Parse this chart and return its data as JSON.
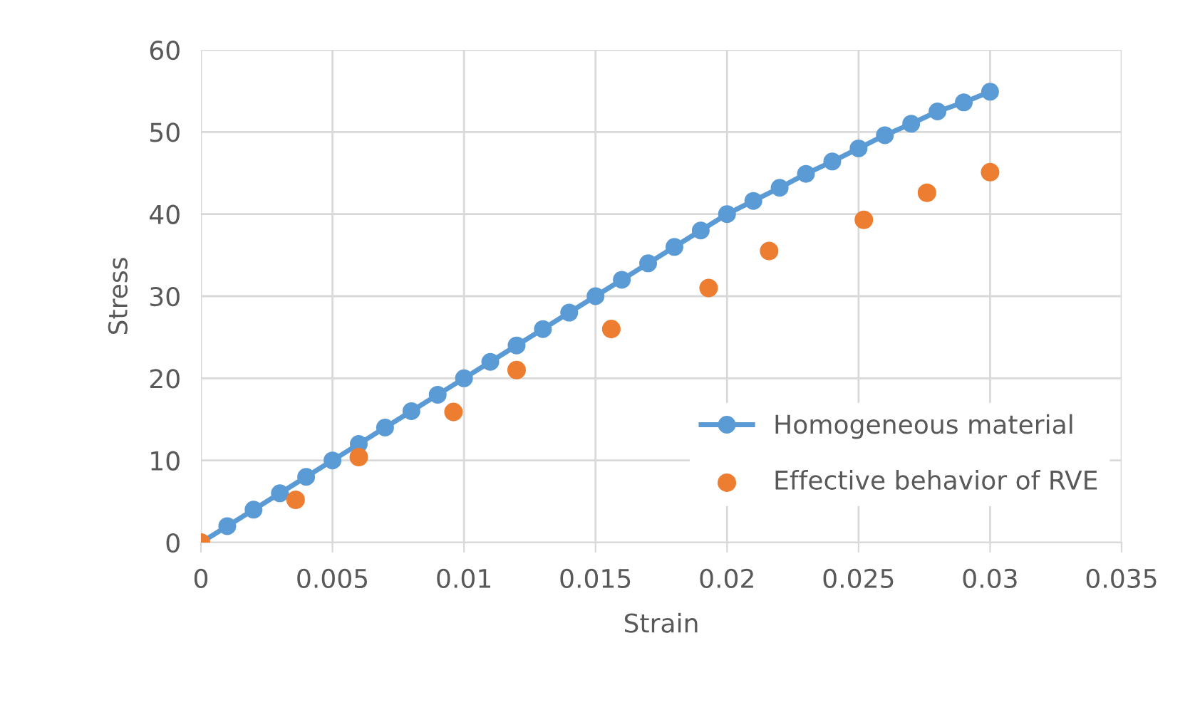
{
  "chart_data": {
    "type": "line",
    "xlabel": "Strain",
    "ylabel": "Stress",
    "xlim": [
      0,
      0.035
    ],
    "xticks": [
      0,
      0.005,
      0.01,
      0.015,
      0.02,
      0.025,
      0.03,
      0.035
    ],
    "ylim": [
      0,
      60
    ],
    "yticks": [
      0,
      10,
      20,
      30,
      40,
      50,
      60
    ],
    "grid": true,
    "legend": "bottom right",
    "marker": "circle",
    "series": [
      {
        "name": "Homogeneous material",
        "color": "#5b9bd5",
        "x": [
          0,
          0.001,
          0.002,
          0.003,
          0.004,
          0.005,
          0.006,
          0.007,
          0.008,
          0.009,
          0.01,
          0.011,
          0.012,
          0.013,
          0.014,
          0.015,
          0.016,
          0.017,
          0.018,
          0.019,
          0.02,
          0.021,
          0.022,
          0.023,
          0.024,
          0.025,
          0.026,
          0.027,
          0.028,
          0.029,
          0.03
        ],
        "values": [
          0,
          2,
          4,
          6,
          8,
          10,
          12,
          14,
          16,
          18,
          20,
          22,
          24,
          26,
          28,
          30,
          32,
          34,
          36,
          38,
          40,
          41.6,
          43.2,
          44.9,
          46.4,
          48,
          49.6,
          51,
          52.5,
          53.6,
          54.9
        ]
      },
      {
        "name": "Effective behavior of RVE",
        "type": "scatter",
        "color": "#ed7d31",
        "x": [
          0,
          0.0036,
          0.006,
          0.0096,
          0.012,
          0.0156,
          0.0193,
          0.0216,
          0.0252,
          0.0276,
          0.03
        ],
        "values": [
          0,
          5.2,
          10.4,
          15.9,
          21.0,
          26.0,
          31.0,
          35.5,
          39.3,
          42.6,
          45.1
        ]
      }
    ]
  }
}
